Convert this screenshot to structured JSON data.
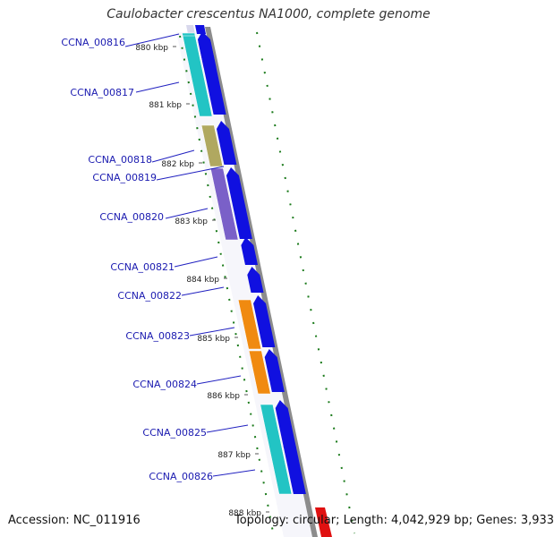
{
  "title": "Caulobacter crescentus NA1000, complete genome",
  "footer": {
    "accession": "Accession: NC_011916",
    "topology": "Topology: circular; Length: 4,042,929 bp; Genes: 3,933"
  },
  "colors": {
    "background": "#ffffff",
    "backbone": "#8c8c8c",
    "forward_arrow": "#1010e0",
    "label_text": "#1a1ab0",
    "label_line": "#2020c0",
    "tick_marks": "#1a7a1a",
    "feature_cyan": "#22c4c4",
    "feature_khaki": "#b0a860",
    "feature_purple": "#7a60c8",
    "feature_orange": "#f08a10",
    "feature_red": "#e01010"
  },
  "scale_ticks": [
    "880 kbp",
    "881 kbp",
    "882 kbp",
    "883 kbp",
    "884 kbp",
    "885 kbp",
    "886 kbp",
    "887 kbp",
    "888 kbp"
  ],
  "genes": [
    {
      "label": "CCNA_00816",
      "color": "cyan"
    },
    {
      "label": "CCNA_00817",
      "color": "cyan"
    },
    {
      "label": "CCNA_00818",
      "color": "khaki"
    },
    {
      "label": "CCNA_00819",
      "color": "purple"
    },
    {
      "label": "CCNA_00820",
      "color": "purple"
    },
    {
      "label": "CCNA_00821",
      "color": "none"
    },
    {
      "label": "CCNA_00822",
      "color": "none"
    },
    {
      "label": "CCNA_00823",
      "color": "orange"
    },
    {
      "label": "CCNA_00824",
      "color": "orange"
    },
    {
      "label": "CCNA_00825",
      "color": "cyan"
    },
    {
      "label": "CCNA_00826",
      "color": "cyan"
    }
  ]
}
